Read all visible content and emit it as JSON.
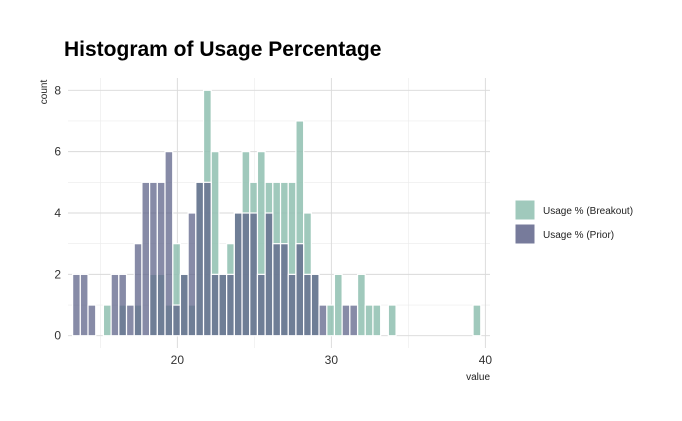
{
  "chart_data": {
    "type": "bar",
    "title": "Histogram of Usage Percentage",
    "xlabel": "value",
    "ylabel": "count",
    "xlim": [
      12.9,
      40.3
    ],
    "ylim": [
      -0.4,
      8.4
    ],
    "x_ticks": [
      20,
      30,
      40
    ],
    "y_ticks": [
      0,
      2,
      4,
      6,
      8
    ],
    "grid": true,
    "legend_position": "right",
    "bin_start": 13.2,
    "bin_width": 0.5,
    "series": [
      {
        "name": "Usage % (Breakout)",
        "color": "#8fbfb0",
        "values": [
          0,
          0,
          0,
          0,
          1,
          0,
          1,
          0,
          1,
          0,
          2,
          2,
          1,
          3,
          2,
          1,
          5,
          8,
          6,
          2,
          3,
          4,
          6,
          5,
          6,
          5,
          5,
          5,
          5,
          7,
          4,
          2,
          0,
          1,
          2,
          0,
          0,
          2,
          1,
          1,
          0,
          1,
          0,
          0,
          0,
          0,
          0,
          0,
          0,
          0,
          0,
          0,
          1
        ]
      },
      {
        "name": "Usage % (Prior)",
        "color": "#5f6489",
        "values": [
          2,
          2,
          1,
          0,
          0,
          2,
          2,
          1,
          3,
          5,
          5,
          5,
          6,
          1,
          2,
          4,
          5,
          5,
          2,
          2,
          2,
          4,
          4,
          4,
          2,
          4,
          3,
          3,
          2,
          3,
          2,
          2,
          1,
          0,
          0,
          1,
          1,
          0,
          0,
          0,
          0,
          0,
          0,
          0,
          0,
          0,
          0,
          0,
          0,
          0,
          0,
          0,
          0
        ]
      }
    ]
  }
}
